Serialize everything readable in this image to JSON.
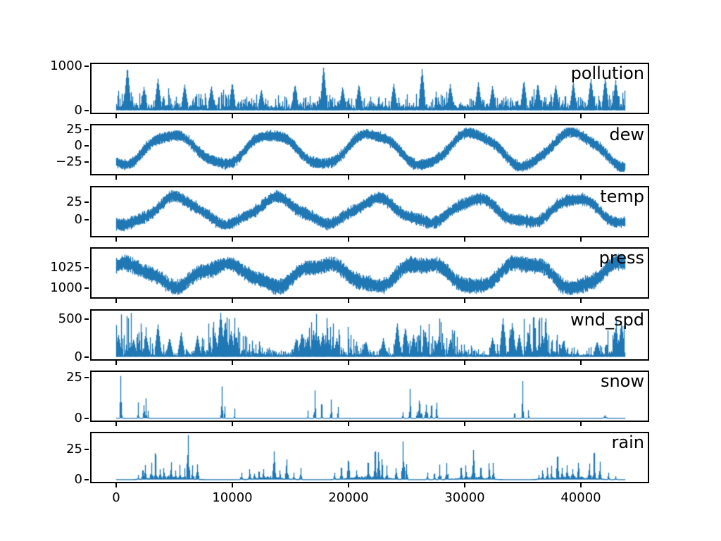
{
  "figure": {
    "background": "#ffffff",
    "series_color": "#1f77b4",
    "axis_color": "#000000",
    "text_color": "#000000"
  },
  "chart_data": {
    "type": "line",
    "title": "",
    "xlabel": "",
    "ylabel": "",
    "grid": false,
    "legend": "none (per-panel text label, top-right inside axes)",
    "x": {
      "data_min": 0,
      "data_max": 43800,
      "xlim": [
        -2121,
        45758
      ],
      "ticks": [
        {
          "v": 0,
          "label": "0"
        },
        {
          "v": 10000,
          "label": "10000"
        },
        {
          "v": 20000,
          "label": "20000"
        },
        {
          "v": 30000,
          "label": "30000"
        },
        {
          "v": 40000,
          "label": "40000"
        }
      ]
    },
    "series_color": "#1f77b4",
    "panels": [
      {
        "label": "pollution",
        "ylim": [
          -52,
          1046
        ],
        "data_range": [
          0,
          1000
        ],
        "yticks": [
          {
            "v": 1000,
            "label": "1000"
          },
          {
            "v": 0,
            "label": "0"
          }
        ],
        "model": {
          "kind": "spiky",
          "lo_amp": 10,
          "base": 25,
          "lin": 95,
          "tail_amp": 310,
          "tail_pow": 3,
          "burst_p": 0.05,
          "burst_amp": 230,
          "season_amp": 0.15,
          "season_phase": 600,
          "spike_w": 260,
          "spikes": [
            [
              970,
              1000
            ],
            [
              2400,
              540
            ],
            [
              3600,
              730
            ],
            [
              5900,
              600
            ],
            [
              8200,
              560
            ],
            [
              10000,
              640
            ],
            [
              12500,
              480
            ],
            [
              15400,
              600
            ],
            [
              17860,
              1000
            ],
            [
              19500,
              540
            ],
            [
              20900,
              600
            ],
            [
              23900,
              620
            ],
            [
              26340,
              950
            ],
            [
              28760,
              600
            ],
            [
              31180,
              640
            ],
            [
              32400,
              560
            ],
            [
              35100,
              690
            ],
            [
              36300,
              620
            ],
            [
              37840,
              580
            ],
            [
              39350,
              650
            ],
            [
              40870,
              730
            ],
            [
              42100,
              750
            ],
            [
              43000,
              690
            ]
          ]
        }
      },
      {
        "label": "dew",
        "ylim": [
          -43.4,
          31.4
        ],
        "data_range": [
          -40,
          28
        ],
        "yticks": [
          {
            "v": 25,
            "label": "25"
          },
          {
            "v": 0,
            "label": "0"
          },
          {
            "v": -25,
            "label": "−25"
          }
        ],
        "model": {
          "kind": "seasonal",
          "offset": -5,
          "amp": 24,
          "period": 8650,
          "phase": 4800,
          "halfwidth": 7,
          "hw_jitter": 2.5,
          "wobble": 2.5,
          "wiggle": 2.2
        }
      },
      {
        "label": "temp",
        "ylim": [
          -22.05,
          45.05
        ],
        "data_range": [
          -19,
          42
        ],
        "yticks": [
          {
            "v": 25,
            "label": "25"
          },
          {
            "v": 0,
            "label": "0"
          }
        ],
        "model": {
          "kind": "seasonal",
          "offset": 12,
          "amp": 17.5,
          "period": 8650,
          "phase": 5100,
          "halfwidth": 6.5,
          "hw_jitter": 3,
          "wobble": 3,
          "wiggle": 2.2
        }
      },
      {
        "label": "press",
        "ylim": [
          988.25,
          1048.75
        ],
        "data_range": [
          991,
          1046
        ],
        "yticks": [
          {
            "v": 1025,
            "label": "1025"
          },
          {
            "v": 1000,
            "label": "1000"
          }
        ],
        "model": {
          "kind": "seasonal",
          "offset": 1016.5,
          "amp": -14.5,
          "period": 8650,
          "phase": 5000,
          "halfwidth": 7.5,
          "hw_jitter": 3.5,
          "wobble": 3,
          "wiggle": 2.5
        }
      },
      {
        "label": "wnd_spd",
        "ylim": [
          -29.25,
          614.25
        ],
        "data_range": [
          0,
          585
        ],
        "yticks": [
          {
            "v": 500,
            "label": "500"
          },
          {
            "v": 0,
            "label": "0"
          }
        ],
        "model": {
          "kind": "spiky",
          "lo_amp": 6,
          "base": 18,
          "lin": 55,
          "tail_amp": 300,
          "tail_pow": 3.2,
          "burst_p": 0.04,
          "burst_amp": 120,
          "season_amp": 0.75,
          "season_phase": 700,
          "spike_w": 260,
          "spikes": [
            [
              200,
              300
            ],
            [
              1500,
              240
            ],
            [
              2600,
              280
            ],
            [
              3600,
              440
            ],
            [
              4600,
              260
            ],
            [
              5600,
              330
            ],
            [
              7000,
              280
            ],
            [
              8500,
              320
            ],
            [
              9000,
              600
            ],
            [
              9400,
              490
            ],
            [
              9900,
              350
            ],
            [
              10300,
              280
            ],
            [
              15500,
              250
            ],
            [
              16000,
              330
            ],
            [
              16500,
              280
            ],
            [
              17000,
              350
            ],
            [
              17400,
              300
            ],
            [
              17800,
              330
            ],
            [
              18200,
              280
            ],
            [
              19000,
              250
            ],
            [
              21500,
              210
            ],
            [
              23000,
              250
            ],
            [
              24200,
              460
            ],
            [
              24900,
              400
            ],
            [
              25600,
              300
            ],
            [
              26600,
              360
            ],
            [
              27800,
              280
            ],
            [
              28800,
              250
            ],
            [
              32400,
              260
            ],
            [
              33300,
              520
            ],
            [
              34100,
              460
            ],
            [
              34700,
              300
            ],
            [
              35500,
              330
            ],
            [
              36700,
              280
            ],
            [
              38500,
              220
            ],
            [
              41400,
              210
            ],
            [
              43000,
              380
            ],
            [
              43500,
              480
            ]
          ]
        }
      },
      {
        "label": "snow",
        "ylim": [
          -1.35,
          28.35
        ],
        "data_range": [
          0,
          27
        ],
        "yticks": [
          {
            "v": 25,
            "label": "25"
          },
          {
            "v": 0,
            "label": "0"
          }
        ],
        "model": {
          "kind": "events",
          "events": [
            [
              400,
              250,
              27
            ],
            [
              1900,
              200,
              10
            ],
            [
              2400,
              250,
              8
            ],
            [
              2570,
              200,
              13
            ],
            [
              2750,
              150,
              5
            ],
            [
              9100,
              250,
              20
            ],
            [
              9350,
              150,
              8
            ],
            [
              10200,
              150,
              6
            ],
            [
              16500,
              150,
              5
            ],
            [
              17100,
              250,
              18
            ],
            [
              17700,
              200,
              9
            ],
            [
              18500,
              250,
              12
            ],
            [
              19100,
              150,
              7
            ],
            [
              24700,
              200,
              4
            ],
            [
              25300,
              250,
              19
            ],
            [
              26100,
              600,
              11
            ],
            [
              26700,
              400,
              9
            ],
            [
              27150,
              250,
              8
            ],
            [
              27600,
              250,
              10
            ],
            [
              34300,
              150,
              3
            ],
            [
              35000,
              250,
              23
            ],
            [
              35500,
              150,
              5
            ],
            [
              42100,
              500,
              2
            ]
          ]
        }
      },
      {
        "label": "rain",
        "ylim": [
          -1.83,
          38.33
        ],
        "data_range": [
          0,
          37
        ],
        "yticks": [
          {
            "v": 25,
            "label": "25"
          },
          {
            "v": 0,
            "label": "0"
          }
        ],
        "model": {
          "kind": "events",
          "events": [
            [
              1900,
              300,
              4
            ],
            [
              2300,
              300,
              8
            ],
            [
              2500,
              300,
              13
            ],
            [
              3050,
              350,
              14
            ],
            [
              3400,
              300,
              22
            ],
            [
              3800,
              300,
              9
            ],
            [
              4100,
              300,
              10
            ],
            [
              4750,
              350,
              15
            ],
            [
              5100,
              300,
              8
            ],
            [
              5500,
              300,
              13
            ],
            [
              5900,
              300,
              10
            ],
            [
              6200,
              350,
              37
            ],
            [
              6600,
              300,
              12
            ],
            [
              7000,
              350,
              13
            ],
            [
              4500,
              6200,
              3.5
            ],
            [
              10800,
              300,
              6
            ],
            [
              11500,
              350,
              9
            ],
            [
              11900,
              300,
              5
            ],
            [
              12300,
              300,
              7
            ],
            [
              12700,
              300,
              9
            ],
            [
              13600,
              350,
              24
            ],
            [
              14100,
              300,
              8
            ],
            [
              14700,
              350,
              18
            ],
            [
              15300,
              300,
              6
            ],
            [
              15900,
              300,
              10
            ],
            [
              13300,
              5200,
              3
            ],
            [
              18800,
              300,
              6
            ],
            [
              19400,
              300,
              10
            ],
            [
              20000,
              350,
              16
            ],
            [
              20700,
              300,
              8
            ],
            [
              21700,
              350,
              15
            ],
            [
              22300,
              300,
              24
            ],
            [
              22600,
              300,
              23
            ],
            [
              22900,
              300,
              18
            ],
            [
              23300,
              300,
              12
            ],
            [
              24100,
              300,
              10
            ],
            [
              24700,
              350,
              34
            ],
            [
              25000,
              300,
              13
            ],
            [
              21800,
              6800,
              3.5
            ],
            [
              26800,
              300,
              6
            ],
            [
              27400,
              300,
              5
            ],
            [
              27850,
              350,
              13
            ],
            [
              28460,
              350,
              14
            ],
            [
              29700,
              300,
              10
            ],
            [
              30100,
              300,
              12
            ],
            [
              30760,
              350,
              26
            ],
            [
              31400,
              300,
              10
            ],
            [
              32100,
              300,
              14
            ],
            [
              32450,
              300,
              15
            ],
            [
              30700,
              5200,
              3
            ],
            [
              36400,
              300,
              4
            ],
            [
              36700,
              300,
              8
            ],
            [
              37100,
              300,
              10
            ],
            [
              37500,
              300,
              12
            ],
            [
              38000,
              350,
              20
            ],
            [
              38400,
              300,
              10
            ],
            [
              38800,
              300,
              12
            ],
            [
              39300,
              300,
              9
            ],
            [
              39800,
              350,
              14
            ],
            [
              40750,
              350,
              14
            ],
            [
              41150,
              350,
              23
            ],
            [
              41650,
              350,
              16
            ],
            [
              39200,
              6800,
              3.5
            ],
            [
              42400,
              300,
              6
            ],
            [
              43000,
              300,
              3
            ]
          ]
        }
      }
    ]
  }
}
